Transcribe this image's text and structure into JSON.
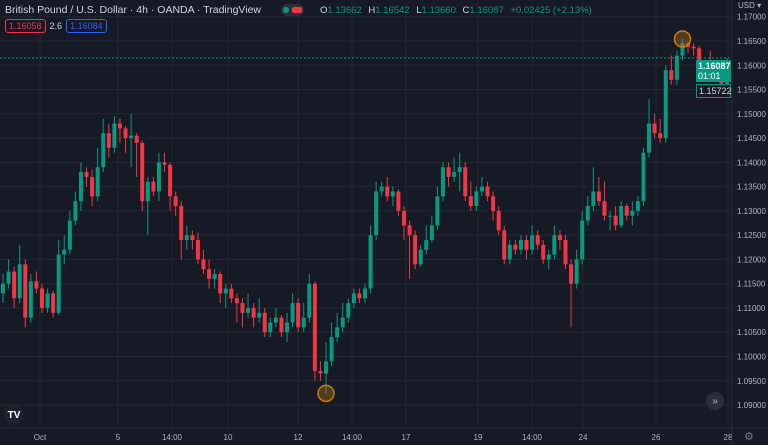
{
  "header": {
    "title": "British Pound / U.S. Dollar · 4h · OANDA · TradingView",
    "ohlc": {
      "o_label": "O",
      "o": "1.13662",
      "h_label": "H",
      "h": "1.16542",
      "l_label": "L",
      "l": "1.13660",
      "c_label": "C",
      "c": "1.16087",
      "change": "+0.02425 (+2.13%)"
    },
    "bid": "1.16058",
    "spread": "2.6",
    "ask": "1.16084"
  },
  "price_axis": {
    "currency": "USD",
    "last_price": "1.16087",
    "countdown": "01:01",
    "other_price": "1.15722"
  },
  "colors": {
    "up": "#089981",
    "down": "#f23645",
    "background": "#161a25",
    "marker": "#c77c0e"
  },
  "chart_data": {
    "type": "candlestick",
    "ylim": [
      1.0875,
      1.1735
    ],
    "yticks": [
      "1.17000",
      "1.16500",
      "1.16000",
      "1.15500",
      "1.15000",
      "1.14500",
      "1.14000",
      "1.13500",
      "1.13000",
      "1.12500",
      "1.12000",
      "1.11500",
      "1.11000",
      "1.10500",
      "1.10000",
      "1.09500",
      "1.09000"
    ],
    "xticks": [
      "Oct",
      "5",
      "14:00",
      "10",
      "12",
      "14:00",
      "17",
      "19",
      "14:00",
      "24",
      "26",
      "28"
    ],
    "grid": true,
    "candles": [
      [
        1.113,
        1.117,
        1.111,
        1.115
      ],
      [
        1.115,
        1.12,
        1.114,
        1.1175
      ],
      [
        1.1175,
        1.1185,
        1.11,
        1.112
      ],
      [
        1.112,
        1.123,
        1.111,
        1.119
      ],
      [
        1.119,
        1.12,
        1.106,
        1.108
      ],
      [
        1.108,
        1.117,
        1.107,
        1.1155
      ],
      [
        1.1155,
        1.1175,
        1.113,
        1.114
      ],
      [
        1.114,
        1.115,
        1.109,
        1.11
      ],
      [
        1.11,
        1.114,
        1.109,
        1.113
      ],
      [
        1.113,
        1.1135,
        1.108,
        1.109
      ],
      [
        1.109,
        1.124,
        1.1085,
        1.121
      ],
      [
        1.121,
        1.125,
        1.119,
        1.122
      ],
      [
        1.122,
        1.13,
        1.121,
        1.128
      ],
      [
        1.128,
        1.134,
        1.127,
        1.132
      ],
      [
        1.132,
        1.14,
        1.13,
        1.138
      ],
      [
        1.138,
        1.139,
        1.135,
        1.137
      ],
      [
        1.137,
        1.1385,
        1.131,
        1.133
      ],
      [
        1.133,
        1.143,
        1.132,
        1.139
      ],
      [
        1.139,
        1.149,
        1.138,
        1.146
      ],
      [
        1.146,
        1.148,
        1.141,
        1.143
      ],
      [
        1.143,
        1.1495,
        1.142,
        1.148
      ],
      [
        1.148,
        1.149,
        1.144,
        1.147
      ],
      [
        1.147,
        1.1475,
        1.142,
        1.145
      ],
      [
        1.145,
        1.15,
        1.139,
        1.1455
      ],
      [
        1.1455,
        1.146,
        1.137,
        1.144
      ],
      [
        1.144,
        1.1445,
        1.13,
        1.132
      ],
      [
        1.132,
        1.137,
        1.125,
        1.136
      ],
      [
        1.136,
        1.137,
        1.133,
        1.134
      ],
      [
        1.134,
        1.142,
        1.132,
        1.14
      ],
      [
        1.14,
        1.142,
        1.138,
        1.1395
      ],
      [
        1.1395,
        1.14,
        1.13,
        1.133
      ],
      [
        1.133,
        1.134,
        1.129,
        1.131
      ],
      [
        1.131,
        1.132,
        1.12,
        1.124
      ],
      [
        1.124,
        1.127,
        1.122,
        1.125
      ],
      [
        1.125,
        1.126,
        1.122,
        1.124
      ],
      [
        1.124,
        1.1255,
        1.119,
        1.12
      ],
      [
        1.12,
        1.122,
        1.117,
        1.118
      ],
      [
        1.118,
        1.12,
        1.114,
        1.116
      ],
      [
        1.116,
        1.118,
        1.114,
        1.117
      ],
      [
        1.117,
        1.1175,
        1.111,
        1.113
      ],
      [
        1.113,
        1.115,
        1.11,
        1.114
      ],
      [
        1.114,
        1.115,
        1.111,
        1.112
      ],
      [
        1.112,
        1.113,
        1.107,
        1.111
      ],
      [
        1.111,
        1.112,
        1.106,
        1.109
      ],
      [
        1.109,
        1.113,
        1.108,
        1.11
      ],
      [
        1.11,
        1.111,
        1.106,
        1.108
      ],
      [
        1.108,
        1.112,
        1.107,
        1.109
      ],
      [
        1.109,
        1.11,
        1.104,
        1.105
      ],
      [
        1.105,
        1.108,
        1.104,
        1.107
      ],
      [
        1.107,
        1.11,
        1.106,
        1.108
      ],
      [
        1.108,
        1.1085,
        1.104,
        1.105
      ],
      [
        1.105,
        1.109,
        1.103,
        1.107
      ],
      [
        1.107,
        1.113,
        1.106,
        1.111
      ],
      [
        1.111,
        1.112,
        1.105,
        1.106
      ],
      [
        1.106,
        1.111,
        1.105,
        1.108
      ],
      [
        1.108,
        1.117,
        1.107,
        1.115
      ],
      [
        1.115,
        1.1155,
        1.095,
        1.097
      ],
      [
        1.097,
        1.099,
        1.095,
        1.0965
      ],
      [
        1.0965,
        1.103,
        1.0924,
        1.099
      ],
      [
        1.099,
        1.107,
        1.098,
        1.104
      ],
      [
        1.104,
        1.109,
        1.103,
        1.106
      ],
      [
        1.106,
        1.111,
        1.105,
        1.108
      ],
      [
        1.108,
        1.112,
        1.107,
        1.111
      ],
      [
        1.111,
        1.114,
        1.11,
        1.113
      ],
      [
        1.113,
        1.114,
        1.111,
        1.112
      ],
      [
        1.112,
        1.115,
        1.111,
        1.114
      ],
      [
        1.114,
        1.127,
        1.113,
        1.125
      ],
      [
        1.125,
        1.136,
        1.124,
        1.134
      ],
      [
        1.134,
        1.136,
        1.133,
        1.135
      ],
      [
        1.135,
        1.137,
        1.132,
        1.133
      ],
      [
        1.133,
        1.135,
        1.131,
        1.134
      ],
      [
        1.134,
        1.1345,
        1.129,
        1.13
      ],
      [
        1.13,
        1.131,
        1.124,
        1.127
      ],
      [
        1.127,
        1.128,
        1.116,
        1.125
      ],
      [
        1.125,
        1.126,
        1.118,
        1.119
      ],
      [
        1.119,
        1.123,
        1.1185,
        1.122
      ],
      [
        1.122,
        1.127,
        1.121,
        1.124
      ],
      [
        1.124,
        1.129,
        1.1235,
        1.127
      ],
      [
        1.127,
        1.135,
        1.126,
        1.133
      ],
      [
        1.133,
        1.14,
        1.132,
        1.139
      ],
      [
        1.139,
        1.14,
        1.135,
        1.137
      ],
      [
        1.137,
        1.141,
        1.136,
        1.138
      ],
      [
        1.138,
        1.142,
        1.134,
        1.139
      ],
      [
        1.139,
        1.14,
        1.132,
        1.133
      ],
      [
        1.133,
        1.136,
        1.13,
        1.131
      ],
      [
        1.131,
        1.135,
        1.13,
        1.134
      ],
      [
        1.134,
        1.137,
        1.133,
        1.135
      ],
      [
        1.135,
        1.136,
        1.132,
        1.133
      ],
      [
        1.133,
        1.134,
        1.128,
        1.13
      ],
      [
        1.13,
        1.131,
        1.125,
        1.126
      ],
      [
        1.126,
        1.127,
        1.119,
        1.12
      ],
      [
        1.12,
        1.124,
        1.119,
        1.123
      ],
      [
        1.123,
        1.124,
        1.121,
        1.122
      ],
      [
        1.122,
        1.125,
        1.121,
        1.124
      ],
      [
        1.124,
        1.125,
        1.12,
        1.122
      ],
      [
        1.122,
        1.127,
        1.121,
        1.125
      ],
      [
        1.125,
        1.126,
        1.122,
        1.123
      ],
      [
        1.123,
        1.124,
        1.119,
        1.12
      ],
      [
        1.12,
        1.122,
        1.118,
        1.121
      ],
      [
        1.121,
        1.127,
        1.12,
        1.125
      ],
      [
        1.125,
        1.126,
        1.122,
        1.124
      ],
      [
        1.124,
        1.125,
        1.118,
        1.119
      ],
      [
        1.119,
        1.12,
        1.106,
        1.115
      ],
      [
        1.115,
        1.122,
        1.114,
        1.12
      ],
      [
        1.12,
        1.13,
        1.119,
        1.128
      ],
      [
        1.128,
        1.133,
        1.127,
        1.131
      ],
      [
        1.131,
        1.139,
        1.13,
        1.134
      ],
      [
        1.134,
        1.137,
        1.131,
        1.132
      ],
      [
        1.132,
        1.136,
        1.128,
        1.129
      ],
      [
        1.129,
        1.13,
        1.126,
        1.129
      ],
      [
        1.129,
        1.131,
        1.126,
        1.127
      ],
      [
        1.127,
        1.132,
        1.1265,
        1.131
      ],
      [
        1.131,
        1.1315,
        1.128,
        1.129
      ],
      [
        1.129,
        1.132,
        1.127,
        1.13
      ],
      [
        1.13,
        1.133,
        1.129,
        1.132
      ],
      [
        1.132,
        1.143,
        1.131,
        1.142
      ],
      [
        1.142,
        1.153,
        1.141,
        1.148
      ],
      [
        1.148,
        1.15,
        1.145,
        1.146
      ],
      [
        1.146,
        1.149,
        1.144,
        1.145
      ],
      [
        1.145,
        1.16,
        1.144,
        1.159
      ],
      [
        1.159,
        1.162,
        1.156,
        1.157
      ],
      [
        1.157,
        1.163,
        1.156,
        1.162
      ],
      [
        1.162,
        1.1654,
        1.161,
        1.1645
      ],
      [
        1.1645,
        1.1648,
        1.1625,
        1.1638
      ],
      [
        1.1638,
        1.1645,
        1.162,
        1.1635
      ],
      [
        1.1635,
        1.164,
        1.159,
        1.16
      ],
      [
        1.16,
        1.1605,
        1.157,
        1.1585
      ],
      [
        1.1585,
        1.163,
        1.1575,
        1.158
      ],
      [
        1.158,
        1.16,
        1.1565,
        1.1575
      ],
      [
        1.1575,
        1.158,
        1.1555,
        1.1562
      ],
      [
        1.1562,
        1.1615,
        1.1558,
        1.1609
      ]
    ],
    "markers": [
      "high",
      "low"
    ]
  },
  "icons": {
    "logo": "tradingview-logo",
    "goto": "double-chevron-right-icon",
    "settings": "gear-icon"
  }
}
